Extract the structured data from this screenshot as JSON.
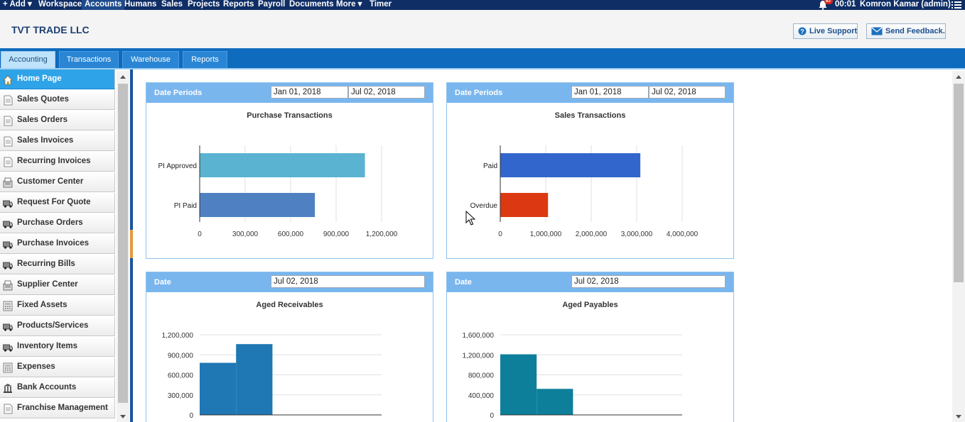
{
  "topnav": {
    "items": [
      "+ Add ▾",
      "Workspace",
      "Accounts",
      "Humans",
      "Sales",
      "Projects",
      "Reports",
      "Payroll",
      "Documents",
      "More ▾",
      "Timer"
    ],
    "active": "Accounts",
    "notification_count": "87",
    "clock": "00:01",
    "user": "Komron Kamar (admin)"
  },
  "header": {
    "company": "TVT TRADE LLC",
    "live_support": "Live Support",
    "send_feedback": "Send Feedback."
  },
  "tabs": [
    "Accounting",
    "Transactions",
    "Warehouse",
    "Reports"
  ],
  "sidebar": {
    "items": [
      {
        "label": "Home Page",
        "icon": "home-icon"
      },
      {
        "label": "Sales Quotes",
        "icon": "document-icon"
      },
      {
        "label": "Sales Orders",
        "icon": "document-icon"
      },
      {
        "label": "Sales Invoices",
        "icon": "document-icon"
      },
      {
        "label": "Recurring Invoices",
        "icon": "document-icon"
      },
      {
        "label": "Customer Center",
        "icon": "register-icon"
      },
      {
        "label": "Request For Quote",
        "icon": "truck-icon"
      },
      {
        "label": "Purchase Orders",
        "icon": "truck-icon"
      },
      {
        "label": "Purchase Invoices",
        "icon": "truck-icon"
      },
      {
        "label": "Recurring Bills",
        "icon": "truck-icon"
      },
      {
        "label": "Supplier Center",
        "icon": "register-icon"
      },
      {
        "label": "Fixed Assets",
        "icon": "calculator-icon"
      },
      {
        "label": "Products/Services",
        "icon": "truck-icon"
      },
      {
        "label": "Inventory Items",
        "icon": "truck-icon"
      },
      {
        "label": "Expenses",
        "icon": "calculator-icon"
      },
      {
        "label": "Bank Accounts",
        "icon": "bank-icon"
      },
      {
        "label": "Franchise Management",
        "icon": "document-icon"
      }
    ]
  },
  "panels": {
    "purchase": {
      "label": "Date Periods",
      "from": "Jan 01, 2018",
      "to": "Jul 02, 2018",
      "title": "Purchase Transactions"
    },
    "sales": {
      "label": "Date Periods",
      "from": "Jan 01, 2018",
      "to": "Jul 02, 2018",
      "title": "Sales Transactions"
    },
    "receivables": {
      "label": "Date",
      "date": "Jul 02, 2018",
      "title": "Aged Receivables"
    },
    "payables": {
      "label": "Date",
      "date": "Jul 02, 2018",
      "title": "Aged Payables"
    }
  },
  "chart_data": [
    {
      "type": "bar",
      "orientation": "horizontal",
      "title": "Purchase Transactions",
      "categories": [
        "PI Approved",
        "PI Paid"
      ],
      "values": [
        1090000,
        760000
      ],
      "colors": [
        "#5ab3d0",
        "#4f81c2"
      ],
      "xlim": [
        0,
        1200000
      ],
      "ticks": [
        "0",
        "300,000",
        "600,000",
        "900,000",
        "1,200,000"
      ],
      "tick_values": [
        0,
        300000,
        600000,
        900000,
        1200000
      ]
    },
    {
      "type": "bar",
      "orientation": "horizontal",
      "title": "Sales Transactions",
      "categories": [
        "Paid",
        "Overdue"
      ],
      "values": [
        3080000,
        1050000
      ],
      "colors": [
        "#3366cc",
        "#dc3912"
      ],
      "xlim": [
        0,
        4000000
      ],
      "ticks": [
        "0",
        "1,000,000",
        "2,000,000",
        "3,000,000",
        "4,000,000"
      ],
      "tick_values": [
        0,
        1000000,
        2000000,
        3000000,
        4000000
      ]
    },
    {
      "type": "bar",
      "orientation": "vertical",
      "title": "Aged Receivables",
      "values": [
        780000,
        1060000,
        0,
        0,
        0
      ],
      "color": "#1f77b4",
      "ylim": [
        0,
        1200000
      ],
      "ticks": [
        "0",
        "300,000",
        "600,000",
        "900,000",
        "1,200,000"
      ],
      "tick_values": [
        0,
        300000,
        600000,
        900000,
        1200000
      ]
    },
    {
      "type": "bar",
      "orientation": "vertical",
      "title": "Aged Payables",
      "values": [
        1210000,
        520000,
        0,
        0,
        0
      ],
      "color": "#0e7f9a",
      "ylim": [
        0,
        1600000
      ],
      "ticks": [
        "0",
        "400,000",
        "800,000",
        "1,200,000",
        "1,600,000"
      ],
      "tick_values": [
        0,
        400000,
        800000,
        1200000,
        1600000
      ]
    }
  ]
}
